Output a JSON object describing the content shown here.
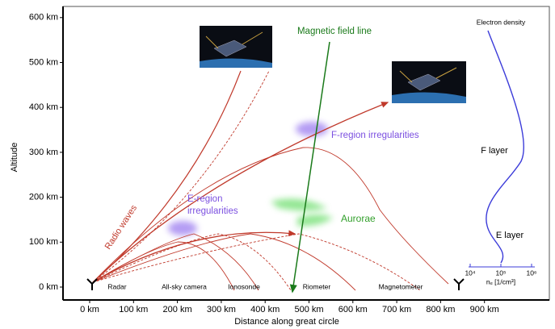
{
  "axes": {
    "y_label": "Altitude",
    "x_label": "Distance along great circle",
    "y_ticks": [
      "0 km",
      "100 km",
      "200 km",
      "300 km",
      "400 km",
      "500 km",
      "600 km"
    ],
    "x_ticks": [
      "0 km",
      "100 km",
      "200 km",
      "300 km",
      "400 km",
      "500 km",
      "600 km",
      "700 km",
      "800 km",
      "900 km"
    ]
  },
  "labels": {
    "magnetic_field_line": "Magnetic field line",
    "f_region": "F-region irregularities",
    "e_region": [
      "E-region",
      "irregularities"
    ],
    "aurorae": "Aurorae",
    "radio_waves": "Radio waves"
  },
  "instruments": [
    "Radar",
    "All-sky camera",
    "Ionosonde",
    "Riometer",
    "Magnetometer"
  ],
  "density_panel": {
    "title": "Electron density",
    "f_layer": "F layer",
    "e_layer": "E layer",
    "ticks": [
      "10⁴",
      "10⁵",
      "10⁶"
    ],
    "axis_label": "nₑ [1/cm³]"
  }
}
